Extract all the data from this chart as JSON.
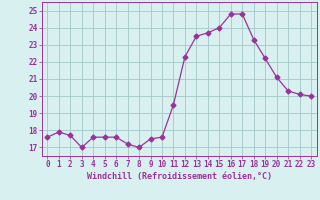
{
  "x": [
    0,
    1,
    2,
    3,
    4,
    5,
    6,
    7,
    8,
    9,
    10,
    11,
    12,
    13,
    14,
    15,
    16,
    17,
    18,
    19,
    20,
    21,
    22,
    23
  ],
  "y": [
    17.6,
    17.9,
    17.7,
    17.0,
    17.6,
    17.6,
    17.6,
    17.2,
    17.0,
    17.5,
    17.6,
    19.5,
    22.3,
    23.5,
    23.7,
    24.0,
    24.8,
    24.8,
    23.3,
    22.2,
    21.1,
    20.3,
    20.1,
    20.0
  ],
  "line_color": "#993399",
  "marker": "D",
  "marker_size": 2.5,
  "bg_color": "#d8f0f0",
  "grid_color": "#aacccc",
  "xlabel": "Windchill (Refroidissement éolien,°C)",
  "xlabel_color": "#993399",
  "tick_color": "#993399",
  "spine_color": "#993399",
  "ylim": [
    16.5,
    25.5
  ],
  "xlim": [
    -0.5,
    23.5
  ],
  "yticks": [
    17,
    18,
    19,
    20,
    21,
    22,
    23,
    24,
    25
  ],
  "xticks": [
    0,
    1,
    2,
    3,
    4,
    5,
    6,
    7,
    8,
    9,
    10,
    11,
    12,
    13,
    14,
    15,
    16,
    17,
    18,
    19,
    20,
    21,
    22,
    23
  ],
  "tick_fontsize": 5.5,
  "xlabel_fontsize": 6.0
}
